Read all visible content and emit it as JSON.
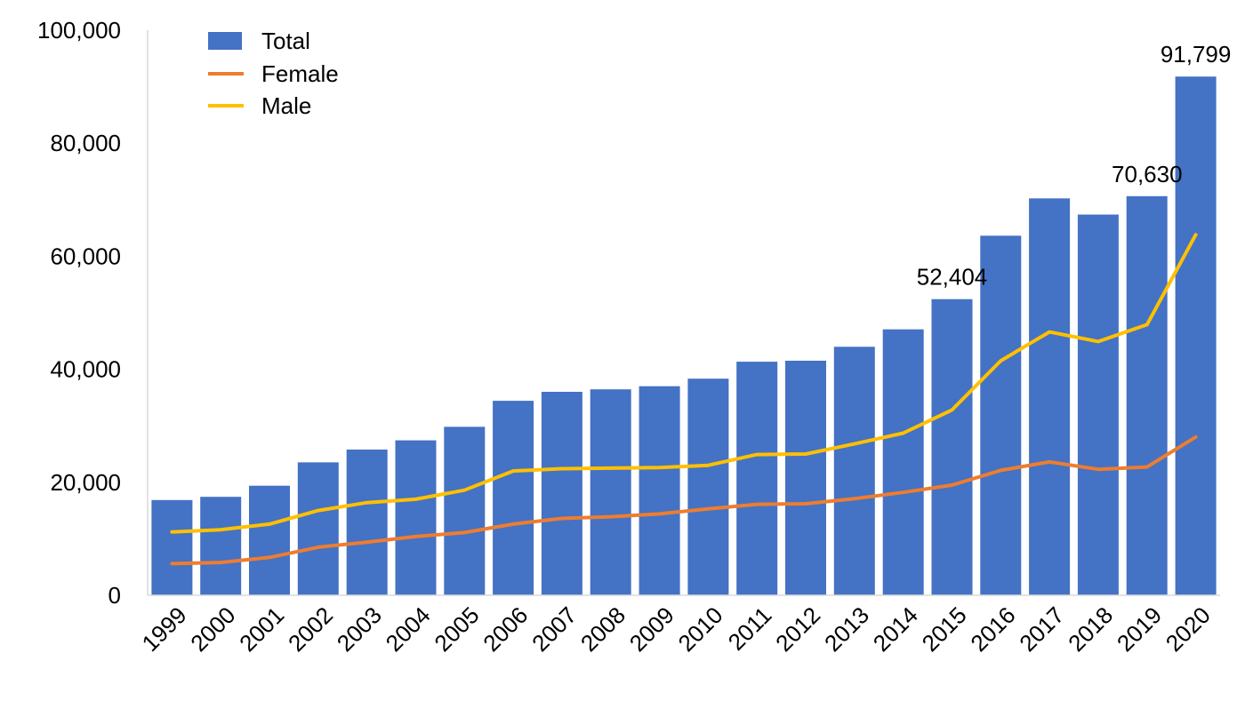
{
  "colors": {
    "total": "#4472C4",
    "female": "#ED7D31",
    "male": "#FFC000",
    "axis": "#D9D9D9",
    "text": "#000000"
  },
  "legend": {
    "total": "Total",
    "female": "Female",
    "male": "Male"
  },
  "chart_data": {
    "type": "bar",
    "title": "",
    "xlabel": "",
    "ylabel": "",
    "ylim": [
      0,
      100000
    ],
    "yticks": [
      "0",
      "20,000",
      "40,000",
      "60,000",
      "80,000",
      "100,000"
    ],
    "grid": false,
    "legend_position": "top-left",
    "categories": [
      "1999",
      "2000",
      "2001",
      "2002",
      "2003",
      "2004",
      "2005",
      "2006",
      "2007",
      "2008",
      "2009",
      "2010",
      "2011",
      "2012",
      "2013",
      "2014",
      "2015",
      "2016",
      "2017",
      "2018",
      "2019",
      "2020"
    ],
    "series": [
      {
        "name": "Total",
        "kind": "bar",
        "values": [
          16849,
          17415,
          19394,
          23518,
          25785,
          27424,
          29813,
          34425,
          36010,
          36450,
          37004,
          38329,
          41340,
          41502,
          43982,
          47055,
          52404,
          63632,
          70237,
          67367,
          70630,
          91799
        ]
      },
      {
        "name": "Female",
        "kind": "line",
        "values": [
          5600,
          5800,
          6700,
          8500,
          9400,
          10400,
          11100,
          12600,
          13600,
          13900,
          14400,
          15300,
          16100,
          16200,
          17100,
          18200,
          19500,
          22100,
          23600,
          22300,
          22700,
          28000
        ]
      },
      {
        "name": "Male",
        "kind": "line",
        "values": [
          11200,
          11600,
          12600,
          15000,
          16400,
          17000,
          18600,
          22000,
          22400,
          22500,
          22600,
          23000,
          24900,
          25000,
          26800,
          28700,
          32800,
          41500,
          46600,
          44900,
          47900,
          63800
        ]
      }
    ],
    "data_labels": [
      {
        "category": "2015",
        "text": "52,404"
      },
      {
        "category": "2019",
        "text": "70,630"
      },
      {
        "category": "2020",
        "text": "91,799"
      }
    ]
  }
}
